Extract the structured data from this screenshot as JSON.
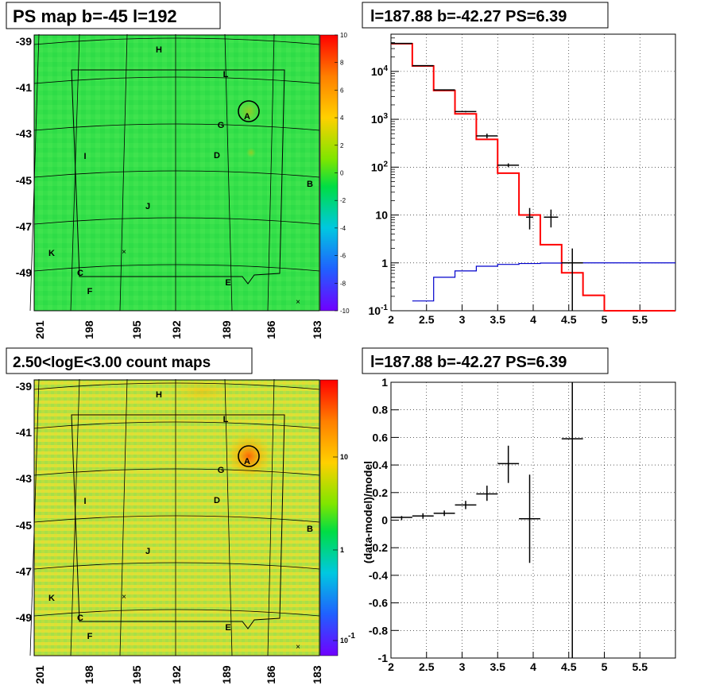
{
  "panels": {
    "tl": {
      "title": "PS map b=-45 l=192"
    },
    "tr": {
      "title": "l=187.88 b=-42.27 PS=6.39"
    },
    "bl": {
      "title": "2.50<logE<3.00 count maps"
    },
    "br": {
      "title": "l=187.88 b=-42.27 PS=6.39"
    }
  },
  "skymap": {
    "lat_ticks": [
      "-39",
      "-41",
      "-43",
      "-45",
      "-47",
      "-49"
    ],
    "lon_ticks": [
      "201",
      "198",
      "195",
      "192",
      "189",
      "186",
      "183"
    ],
    "sources": [
      "H",
      "L",
      "A",
      "G",
      "D",
      "I",
      "B",
      "J",
      "K",
      "C",
      "F",
      "E"
    ],
    "ps_colorbar_labels": [
      "10",
      "8",
      "6",
      "4",
      "2",
      "0",
      "-2",
      "-4",
      "-6",
      "-8",
      "-10"
    ],
    "count_colorbar_labels": [
      "10",
      "1",
      "10^-1"
    ]
  },
  "colors": {
    "data": "#000000",
    "model": "#ff0000",
    "ps_model": "#0000cc",
    "map_green": "#33e24a",
    "count_map": "#c6e43a"
  },
  "chart_data": [
    {
      "type": "line",
      "title": "l=187.88 b=-42.27 PS=6.39",
      "scale": "log-y",
      "xlim": [
        2,
        6
      ],
      "ylim": [
        0.1,
        60000
      ],
      "grid": true,
      "x_ticks": [
        "2",
        "2.5",
        "3",
        "3.5",
        "4",
        "4.5",
        "5",
        "5.5"
      ],
      "y_ticks": [
        "10^-1",
        "1",
        "10",
        "10^2",
        "10^3",
        "10^4"
      ],
      "series": [
        {
          "style": "step",
          "color": "#ff0000",
          "bins": [
            [
              2.0,
              2.3
            ],
            [
              2.3,
              2.6
            ],
            [
              2.6,
              2.9
            ],
            [
              2.9,
              3.2
            ],
            [
              3.2,
              3.5
            ],
            [
              3.5,
              3.8
            ],
            [
              3.8,
              4.1
            ],
            [
              4.1,
              4.4
            ],
            [
              4.4,
              4.7
            ],
            [
              4.7,
              5.0
            ],
            [
              5.0,
              6.0
            ]
          ],
          "values": [
            38000,
            13000,
            4000,
            1300,
            380,
            75,
            10,
            2.4,
            0.62,
            0.21,
            0.1
          ]
        },
        {
          "style": "step",
          "color": "#0000cc",
          "bins": [
            [
              2.3,
              2.6
            ],
            [
              2.6,
              2.9
            ],
            [
              2.9,
              3.2
            ],
            [
              3.2,
              3.5
            ],
            [
              3.5,
              3.8
            ],
            [
              3.8,
              4.1
            ],
            [
              4.1,
              4.4
            ],
            [
              4.4,
              4.7
            ],
            [
              4.7,
              5.0
            ],
            [
              5.0,
              6.0
            ]
          ],
          "values": [
            0.16,
            0.5,
            0.68,
            0.85,
            0.93,
            0.97,
            0.99,
            1.0,
            1.0,
            1.0
          ]
        },
        {
          "style": "points",
          "color": "#000000",
          "x": [
            2.15,
            2.45,
            2.75,
            3.05,
            3.35,
            3.65,
            3.95,
            4.25,
            4.55
          ],
          "xerr": [
            0.15,
            0.15,
            0.15,
            0.15,
            0.15,
            0.15,
            0.05,
            0.1,
            0.15
          ],
          "y": [
            38500,
            13200,
            4100,
            1450,
            450,
            110,
            9,
            9,
            1
          ],
          "ylo": [
            38300,
            13000,
            4000,
            1400,
            400,
            100,
            5,
            5.5,
            0.1
          ],
          "yhi": [
            38700,
            13400,
            4200,
            1500,
            500,
            120,
            14,
            13,
            2
          ]
        }
      ]
    },
    {
      "type": "scatter",
      "title": "l=187.88 b=-42.27 PS=6.39",
      "ylabel": "(data-model)/model",
      "xlim": [
        2,
        6
      ],
      "ylim": [
        -1,
        1
      ],
      "grid": true,
      "x_ticks": [
        "2",
        "2.5",
        "3",
        "3.5",
        "4",
        "4.5",
        "5",
        "5.5"
      ],
      "y_ticks": [
        "-1",
        "-0.8",
        "-0.6",
        "-0.4",
        "-0.2",
        "0",
        "0.2",
        "0.4",
        "0.6",
        "0.8",
        "1"
      ],
      "series": [
        {
          "style": "points",
          "color": "#000000",
          "x": [
            2.15,
            2.45,
            2.75,
            3.05,
            3.35,
            3.65,
            3.95,
            4.55
          ],
          "xerr": [
            0.15,
            0.15,
            0.15,
            0.15,
            0.15,
            0.15,
            0.15,
            0.15
          ],
          "y": [
            0.02,
            0.03,
            0.05,
            0.11,
            0.19,
            0.41,
            0.01,
            0.59
          ],
          "ylo": [
            0.0,
            0.01,
            0.03,
            0.08,
            0.14,
            0.27,
            -0.31,
            -1.0
          ],
          "yhi": [
            0.03,
            0.05,
            0.07,
            0.14,
            0.25,
            0.54,
            0.33,
            1.0
          ]
        }
      ]
    }
  ]
}
